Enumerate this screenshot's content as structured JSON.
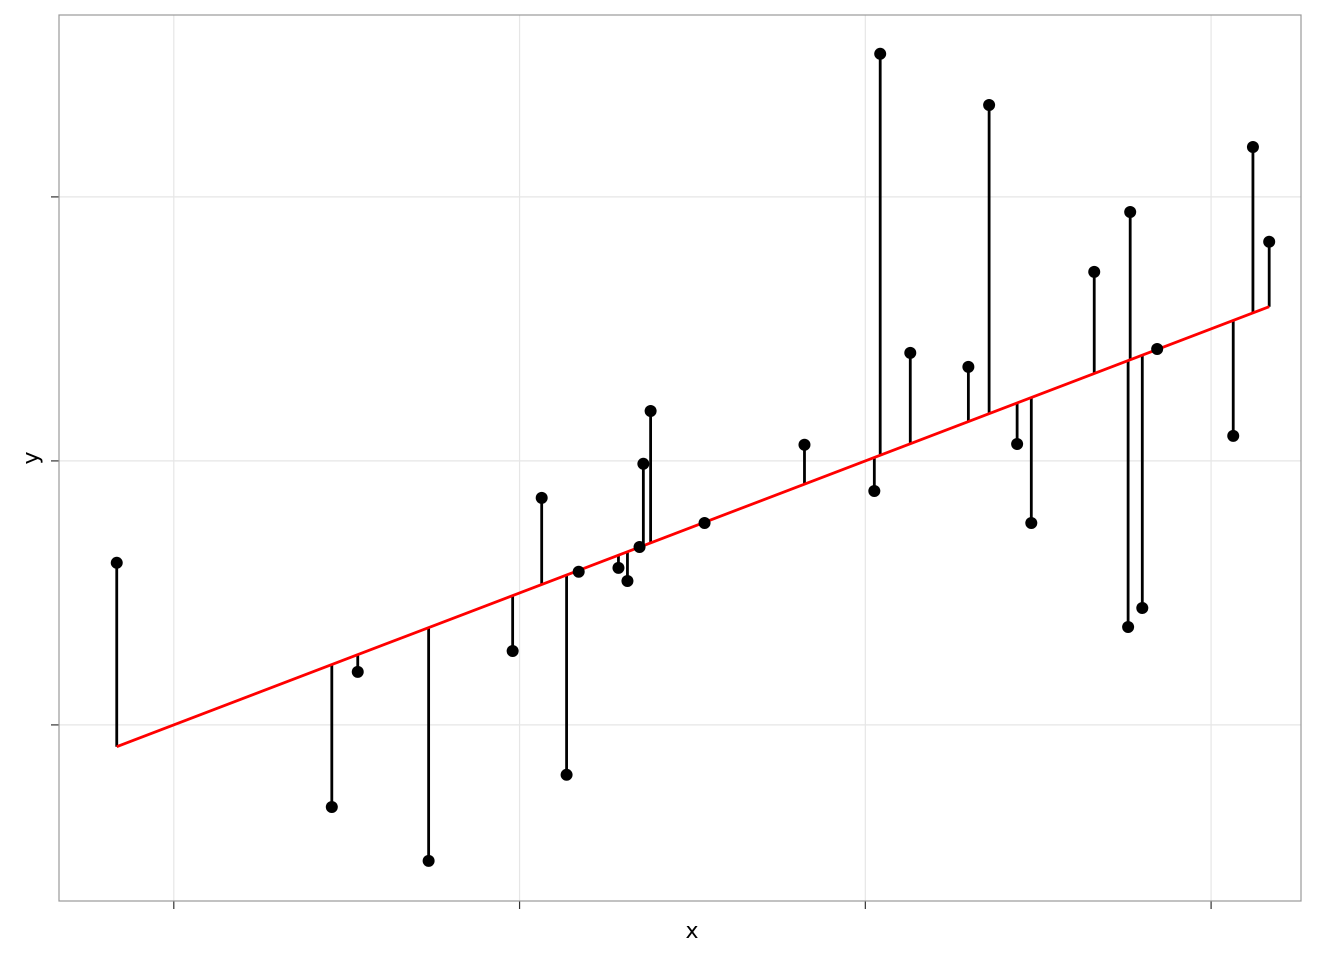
{
  "chart_data": {
    "type": "scatter",
    "x_label": "x",
    "y_label": "y",
    "xlim": [
      0.668,
      4.26
    ],
    "ylim": [
      0.333,
      3.689
    ],
    "xticks": [
      1,
      2,
      3,
      4
    ],
    "yticks": [
      1,
      2,
      3
    ],
    "grid": true,
    "color": "#000000",
    "fit": {
      "intercept": 0.5,
      "slope": 0.5,
      "color": "#ff0000"
    },
    "x": [
      0.835,
      1.457,
      1.532,
      1.737,
      1.98,
      2.064,
      2.136,
      2.171,
      2.286,
      2.312,
      2.347,
      2.358,
      2.379,
      2.535,
      2.824,
      3.026,
      3.043,
      3.13,
      3.298,
      3.358,
      3.439,
      3.48,
      3.662,
      3.76,
      3.766,
      3.801,
      3.844,
      4.064,
      4.121,
      4.168
    ],
    "values": [
      1.614,
      0.689,
      1.201,
      0.485,
      1.28,
      1.86,
      0.811,
      1.58,
      1.595,
      1.545,
      1.674,
      1.989,
      2.189,
      1.765,
      2.061,
      1.886,
      3.542,
      2.409,
      2.356,
      3.348,
      2.064,
      1.765,
      2.716,
      1.371,
      2.943,
      1.443,
      2.424,
      2.095,
      3.189,
      2.83
    ]
  }
}
